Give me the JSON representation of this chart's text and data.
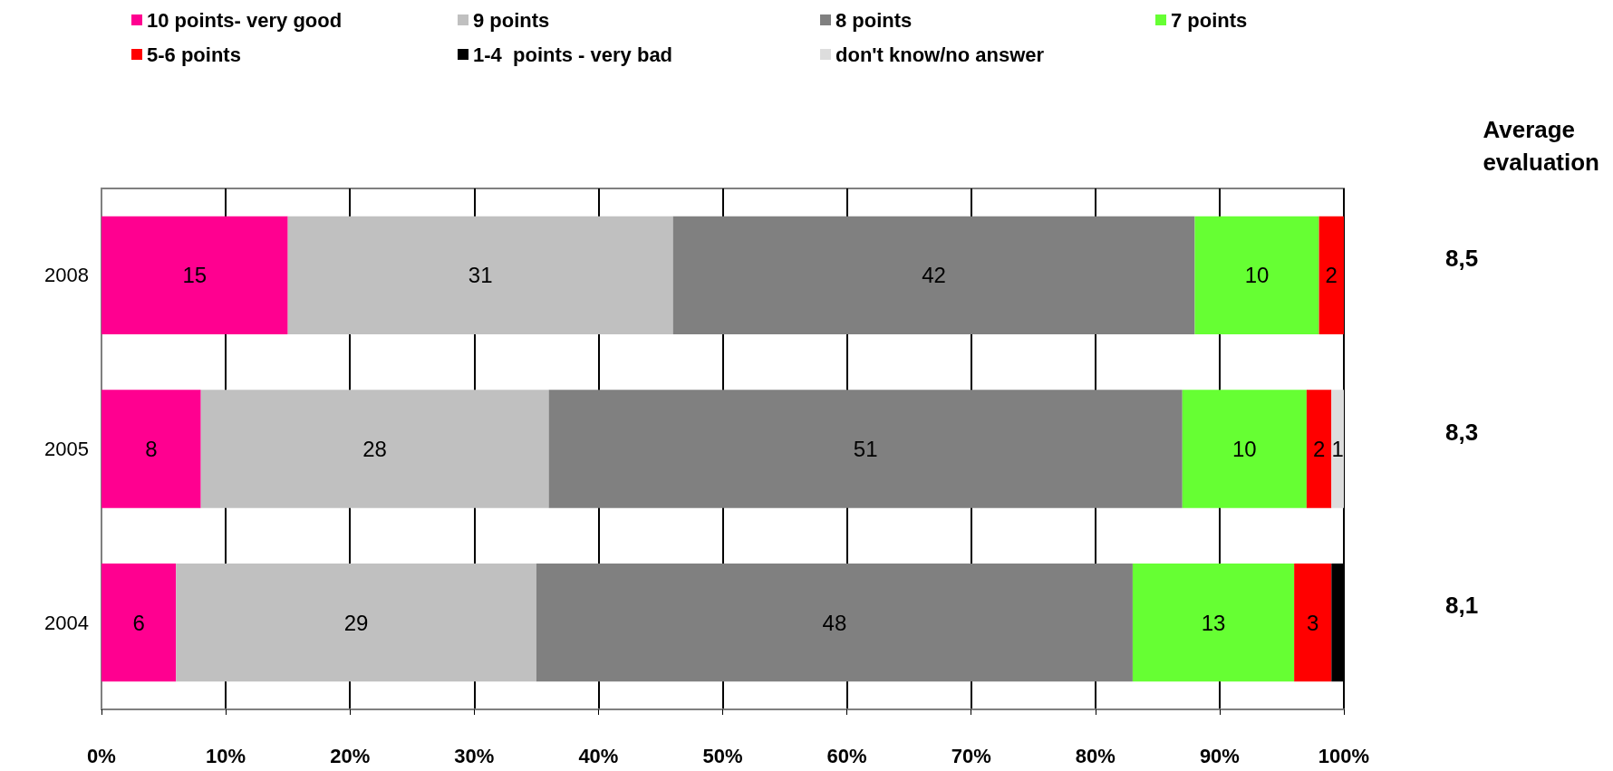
{
  "chart_data": {
    "type": "bar",
    "orientation": "horizontal",
    "stacked": true,
    "categories": [
      "2008",
      "2005",
      "2004"
    ],
    "series": [
      {
        "name": "10 points- very good",
        "color": "#ff0090",
        "values": [
          15,
          8,
          6
        ],
        "value_labels": [
          "15",
          "8",
          "6"
        ]
      },
      {
        "name": "9 points",
        "color": "#c0c0c0",
        "values": [
          31,
          28,
          29
        ],
        "value_labels": [
          "31",
          "28",
          "29"
        ]
      },
      {
        "name": "8 points",
        "color": "#808080",
        "values": [
          42,
          51,
          48
        ],
        "value_labels": [
          "42",
          "51",
          "48"
        ]
      },
      {
        "name": "7 points",
        "color": "#66ff33",
        "values": [
          10,
          10,
          13
        ],
        "value_labels": [
          "10",
          "10",
          "13"
        ]
      },
      {
        "name": "5-6 points",
        "color": "#ff0000",
        "values": [
          2,
          2,
          3
        ],
        "value_labels": [
          "2",
          "2",
          "3"
        ]
      },
      {
        "name": "1-4  points - very bad",
        "color": "#000000",
        "values": [
          0,
          0,
          1
        ],
        "value_labels": [
          null,
          null,
          null
        ]
      },
      {
        "name": "don't know/no answer",
        "color": "#dddddd",
        "values": [
          0,
          1,
          0
        ],
        "value_labels": [
          null,
          "1",
          null
        ]
      }
    ],
    "xlim": [
      0,
      100
    ],
    "xticks": [
      {
        "value": 0,
        "label": "0%"
      },
      {
        "value": 10,
        "label": "10%"
      },
      {
        "value": 20,
        "label": "20%"
      },
      {
        "value": 30,
        "label": "30%"
      },
      {
        "value": 40,
        "label": "40%"
      },
      {
        "value": 50,
        "label": "50%"
      },
      {
        "value": 60,
        "label": "60%"
      },
      {
        "value": 70,
        "label": "70%"
      },
      {
        "value": 80,
        "label": "80%"
      },
      {
        "value": 90,
        "label": "90%"
      },
      {
        "value": 100,
        "label": "100%"
      }
    ],
    "grid": "x",
    "legend": "top left",
    "annotations": [
      "Average\nevaluation",
      "8,5",
      "8,3",
      "8,1"
    ]
  }
}
